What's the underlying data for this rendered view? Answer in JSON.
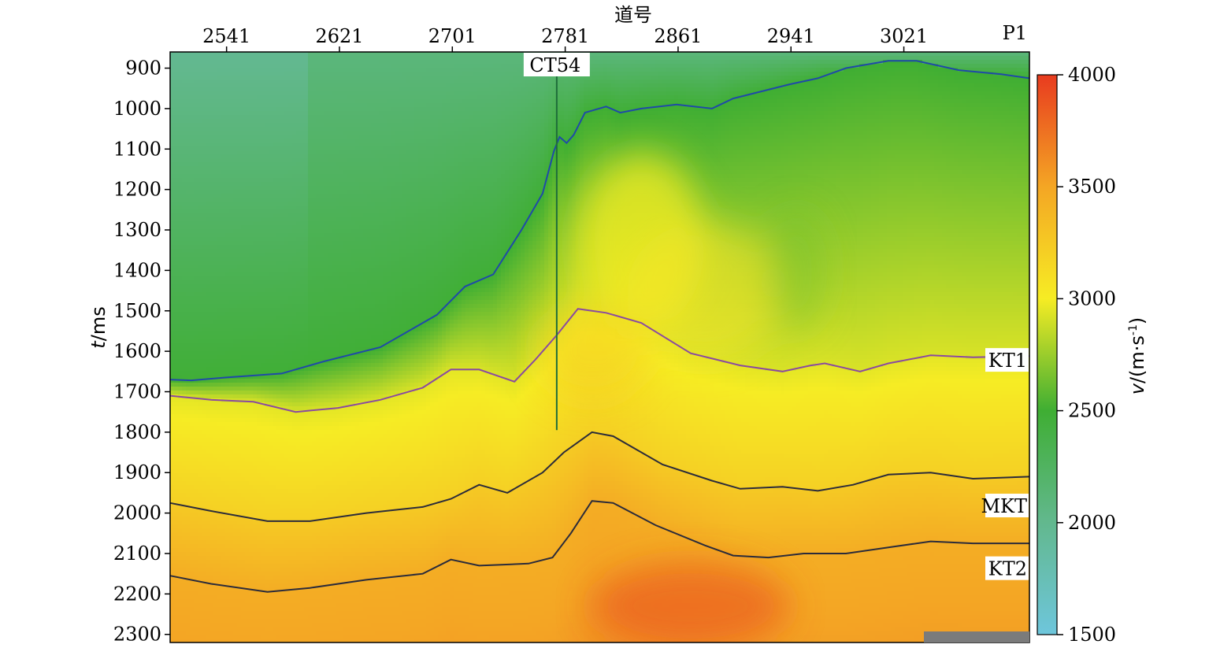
{
  "chart_data": {
    "type": "heatmap",
    "xlabel": "道号",
    "ylabel_var": "t",
    "ylabel_unit": "/ms",
    "x_ticks": [
      2541,
      2621,
      2701,
      2781,
      2861,
      2941,
      3021
    ],
    "y_ticks": [
      900,
      1000,
      1100,
      1200,
      1300,
      1400,
      1500,
      1600,
      1700,
      1800,
      1900,
      2000,
      2100,
      2200,
      2300
    ],
    "xlim": [
      2501,
      3110
    ],
    "ylim": [
      860,
      2320
    ],
    "colorbar": {
      "label_var": "v",
      "label_unit": "/(m·s",
      "label_exp": "-1",
      "label_close": ")",
      "ticks": [
        1500,
        2000,
        2500,
        3000,
        3500,
        4000
      ],
      "range": [
        1500,
        4000
      ],
      "colors": [
        "#6ec6dc",
        "#62b88e",
        "#3fae33",
        "#f6ec24",
        "#f4a624",
        "#e83b1f"
      ]
    },
    "well": {
      "name": "CT54",
      "trace": 2775,
      "t_top": 880,
      "t_bottom": 1795
    },
    "horizons": [
      {
        "name": "P1",
        "color": "#1f4aa8",
        "points": [
          [
            2501,
            1670
          ],
          [
            2516,
            1672
          ],
          [
            2540,
            1665
          ],
          [
            2580,
            1655
          ],
          [
            2610,
            1625
          ],
          [
            2650,
            1590
          ],
          [
            2690,
            1510
          ],
          [
            2710,
            1440
          ],
          [
            2730,
            1410
          ],
          [
            2750,
            1300
          ],
          [
            2765,
            1210
          ],
          [
            2773,
            1105
          ],
          [
            2777,
            1070
          ],
          [
            2782,
            1085
          ],
          [
            2787,
            1065
          ],
          [
            2795,
            1010
          ],
          [
            2810,
            995
          ],
          [
            2820,
            1010
          ],
          [
            2835,
            1000
          ],
          [
            2860,
            990
          ],
          [
            2885,
            1000
          ],
          [
            2900,
            975
          ],
          [
            2940,
            940
          ],
          [
            2960,
            925
          ],
          [
            2980,
            900
          ],
          [
            3010,
            882
          ],
          [
            3030,
            882
          ],
          [
            3060,
            905
          ],
          [
            3090,
            915
          ],
          [
            3110,
            925
          ]
        ]
      },
      {
        "name": "KT1",
        "color": "#8a4aa0",
        "points": [
          [
            2501,
            1710
          ],
          [
            2530,
            1720
          ],
          [
            2560,
            1725
          ],
          [
            2590,
            1750
          ],
          [
            2620,
            1740
          ],
          [
            2650,
            1720
          ],
          [
            2680,
            1690
          ],
          [
            2700,
            1645
          ],
          [
            2720,
            1645
          ],
          [
            2745,
            1675
          ],
          [
            2760,
            1620
          ],
          [
            2775,
            1560
          ],
          [
            2790,
            1495
          ],
          [
            2810,
            1505
          ],
          [
            2835,
            1530
          ],
          [
            2870,
            1605
          ],
          [
            2905,
            1635
          ],
          [
            2935,
            1650
          ],
          [
            2955,
            1635
          ],
          [
            2965,
            1630
          ],
          [
            2990,
            1650
          ],
          [
            3010,
            1630
          ],
          [
            3040,
            1610
          ],
          [
            3070,
            1615
          ],
          [
            3110,
            1612
          ]
        ]
      },
      {
        "name": "MKT",
        "color": "#2b2b3a",
        "points": [
          [
            2501,
            1975
          ],
          [
            2530,
            1995
          ],
          [
            2570,
            2020
          ],
          [
            2600,
            2020
          ],
          [
            2640,
            2000
          ],
          [
            2680,
            1985
          ],
          [
            2700,
            1965
          ],
          [
            2720,
            1930
          ],
          [
            2740,
            1950
          ],
          [
            2765,
            1900
          ],
          [
            2780,
            1850
          ],
          [
            2800,
            1800
          ],
          [
            2815,
            1810
          ],
          [
            2850,
            1880
          ],
          [
            2885,
            1920
          ],
          [
            2905,
            1940
          ],
          [
            2935,
            1935
          ],
          [
            2960,
            1945
          ],
          [
            2985,
            1930
          ],
          [
            3010,
            1905
          ],
          [
            3040,
            1900
          ],
          [
            3070,
            1915
          ],
          [
            3110,
            1910
          ]
        ]
      },
      {
        "name": "KT2",
        "color": "#2b2b3a",
        "points": [
          [
            2501,
            2155
          ],
          [
            2530,
            2175
          ],
          [
            2570,
            2195
          ],
          [
            2600,
            2185
          ],
          [
            2640,
            2165
          ],
          [
            2680,
            2150
          ],
          [
            2700,
            2115
          ],
          [
            2720,
            2130
          ],
          [
            2755,
            2125
          ],
          [
            2772,
            2110
          ],
          [
            2785,
            2050
          ],
          [
            2800,
            1970
          ],
          [
            2815,
            1975
          ],
          [
            2845,
            2030
          ],
          [
            2880,
            2080
          ],
          [
            2900,
            2105
          ],
          [
            2925,
            2110
          ],
          [
            2950,
            2100
          ],
          [
            2980,
            2100
          ],
          [
            3010,
            2085
          ],
          [
            3040,
            2070
          ],
          [
            3070,
            2075
          ],
          [
            3110,
            2075
          ]
        ]
      }
    ]
  }
}
